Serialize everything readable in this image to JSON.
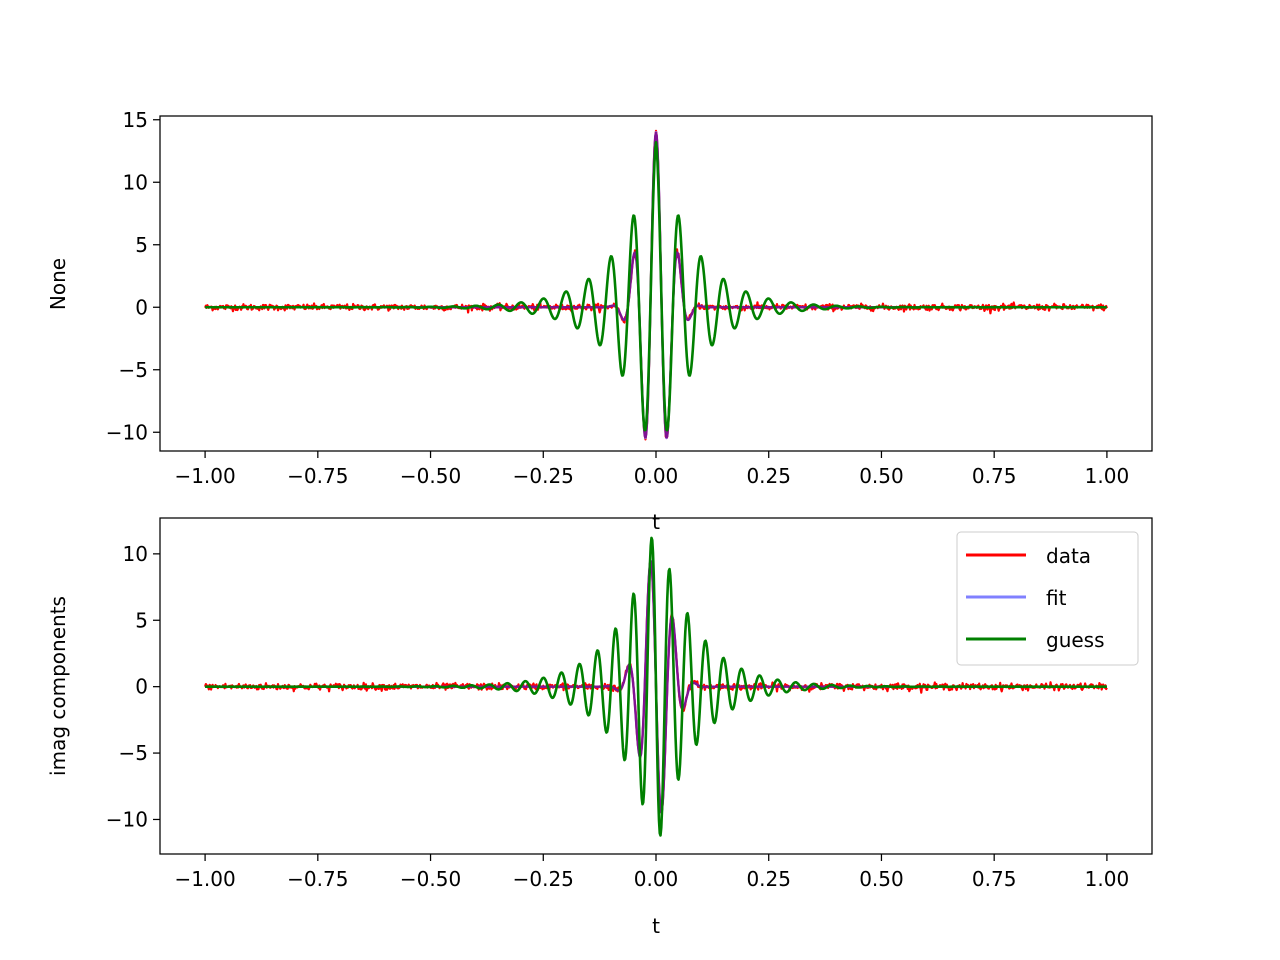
{
  "chart_data": [
    {
      "type": "line",
      "xlabel": "t",
      "ylabel": "None",
      "xlim": [
        -1.1,
        1.1
      ],
      "ylim": [
        -11.5,
        15.3
      ],
      "x_ticks": [
        -1.0,
        -0.75,
        -0.5,
        -0.25,
        0.0,
        0.25,
        0.5,
        0.75,
        1.0
      ],
      "x_tick_labels": [
        "−1.00",
        "−0.75",
        "−0.50",
        "−0.25",
        "0.00",
        "0.25",
        "0.50",
        "0.75",
        "1.00"
      ],
      "y_ticks": [
        -10,
        -5,
        0,
        5,
        10,
        15
      ],
      "y_tick_labels": [
        "−10",
        "−5",
        "0",
        "5",
        "10",
        "15"
      ],
      "grid": false,
      "x_range": [
        -1.0,
        1.0
      ],
      "series": [
        {
          "name": "data",
          "color": "#ff0000",
          "approx_peak": 14.0,
          "noise_amplitude": 0.15,
          "description_params": {
            "freq_hz": 20,
            "decay": 10
          }
        },
        {
          "name": "fit",
          "color": "#8080ff",
          "approx_peak": 14.0
        },
        {
          "name": "guess",
          "color": "#008000",
          "approx_peak": 13.2
        }
      ],
      "key_points": {
        "data_peak": {
          "x": 0.0,
          "y": 14.0
        },
        "guess_peak": {
          "x": 0.0,
          "y": 13.2
        },
        "guess_min_left": {
          "x": -0.05,
          "y": -10.2
        },
        "guess_min_right": {
          "x": 0.05,
          "y": -10.2
        },
        "guess_side_peaks": {
          "x": [
            -0.1,
            0.1
          ],
          "y": 8.1
        }
      }
    },
    {
      "type": "line",
      "xlabel": "t",
      "ylabel": "imag components",
      "xlim": [
        -1.1,
        1.1
      ],
      "ylim": [
        -12.6,
        12.7
      ],
      "x_ticks": [
        -1.0,
        -0.75,
        -0.5,
        -0.25,
        0.0,
        0.25,
        0.5,
        0.75,
        1.0
      ],
      "x_tick_labels": [
        "−1.00",
        "−0.75",
        "−0.50",
        "−0.25",
        "0.00",
        "0.25",
        "0.50",
        "0.75",
        "1.00"
      ],
      "y_ticks": [
        -10,
        -5,
        0,
        5,
        10
      ],
      "y_tick_labels": [
        "−10",
        "−5",
        "0",
        "5",
        "10"
      ],
      "grid": false,
      "legend": {
        "placement": "upper right",
        "entries": [
          {
            "label": "data",
            "color": "#ff0000"
          },
          {
            "label": "fit",
            "color": "#8080ff"
          },
          {
            "label": "guess",
            "color": "#008000"
          }
        ]
      },
      "series": [
        {
          "name": "data",
          "color": "#ff0000"
        },
        {
          "name": "fit",
          "color": "#8080ff"
        },
        {
          "name": "guess",
          "color": "#008000"
        }
      ],
      "key_points": {
        "guess_max": {
          "x": -0.01,
          "y": 11.6
        },
        "guess_min": {
          "x": 0.01,
          "y": -11.6
        },
        "data_max": {
          "x": -0.01,
          "y": 10.2
        }
      }
    }
  ]
}
